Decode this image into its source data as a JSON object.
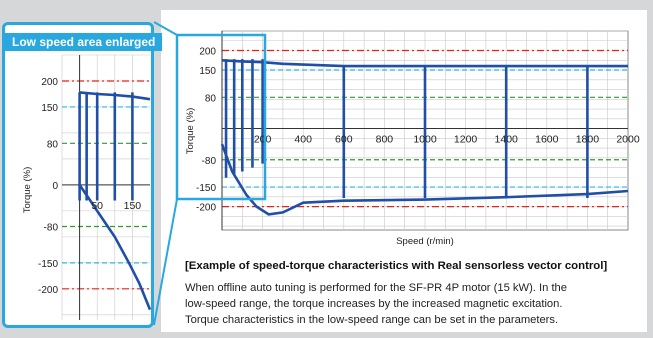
{
  "inset_title": "Low speed area enlarged",
  "caption": {
    "title": "[Example of speed-torque characteristics with Real sensorless vector control]",
    "lines": [
      "When offline auto tuning is performed for the SF-PR 4P motor (15 kW). In the",
      "low-speed range, the torque increases by the increased magnetic excitation.",
      "Torque characteristics in the low-speed range can be set in the parameters."
    ]
  },
  "colors": {
    "highlight": "#29a8e0",
    "curve": "#1f4fa6",
    "ref_red": "#e2231a",
    "ref_cyan": "#29b6e0",
    "ref_green": "#2e9a2e",
    "ref_black": "#111111"
  },
  "chart_data": [
    {
      "type": "line",
      "title": "",
      "xlabel": "Speed (r/min)",
      "ylabel": "Torque (%)",
      "xlim": [
        0,
        2000
      ],
      "ylim": [
        -260,
        250
      ],
      "x_ticks": [
        "200",
        "400",
        "600",
        "800",
        "1000",
        "1200",
        "1400",
        "1600",
        "1800",
        "2000"
      ],
      "y_ticks": [
        "200",
        "150",
        "80",
        "0",
        "-80",
        "-150",
        "-200"
      ],
      "grid": true,
      "reference_lines": [
        {
          "y": 200,
          "color": "red"
        },
        {
          "y": 150,
          "color": "cyan"
        },
        {
          "y": 80,
          "color": "green"
        },
        {
          "y": -80,
          "color": "green"
        },
        {
          "y": -150,
          "color": "cyan"
        },
        {
          "y": -200,
          "color": "red"
        }
      ],
      "series": [
        {
          "values": [
            [
              0,
              175
            ],
            [
              100,
              172
            ],
            [
              200,
              170
            ],
            [
              300,
              166
            ],
            [
              600,
              160
            ],
            [
              1000,
              160
            ],
            [
              1400,
              160
            ],
            [
              1800,
              160
            ],
            [
              2000,
              160
            ]
          ]
        },
        {
          "values": [
            [
              0,
              -40
            ],
            [
              50,
              -110
            ],
            [
              120,
              -170
            ],
            [
              170,
              -200
            ],
            [
              230,
              -220
            ],
            [
              300,
              -215
            ],
            [
              400,
              -190
            ],
            [
              600,
              -185
            ],
            [
              1000,
              -182
            ],
            [
              1400,
              -176
            ],
            [
              1800,
              -168
            ],
            [
              2000,
              -160
            ]
          ]
        }
      ]
    },
    {
      "type": "line",
      "title": "Low speed area enlarged",
      "xlabel": "",
      "ylabel": "Torque (%)",
      "xlim": [
        -50,
        200
      ],
      "ylim": [
        -260,
        250
      ],
      "x_ticks": [
        "50",
        "150"
      ],
      "y_ticks": [
        "200",
        "150",
        "80",
        "0",
        "-80",
        "-150",
        "-200"
      ],
      "grid": true,
      "series": [
        {
          "values": [
            [
              0,
              178
            ],
            [
              50,
              175
            ],
            [
              100,
              173
            ],
            [
              150,
              170
            ],
            [
              200,
              165
            ]
          ]
        },
        {
          "values": [
            [
              0,
              0
            ],
            [
              30,
              -30
            ],
            [
              60,
              -60
            ],
            [
              100,
              -100
            ],
            [
              140,
              -150
            ],
            [
              170,
              -190
            ],
            [
              200,
              -240
            ]
          ]
        }
      ]
    }
  ]
}
